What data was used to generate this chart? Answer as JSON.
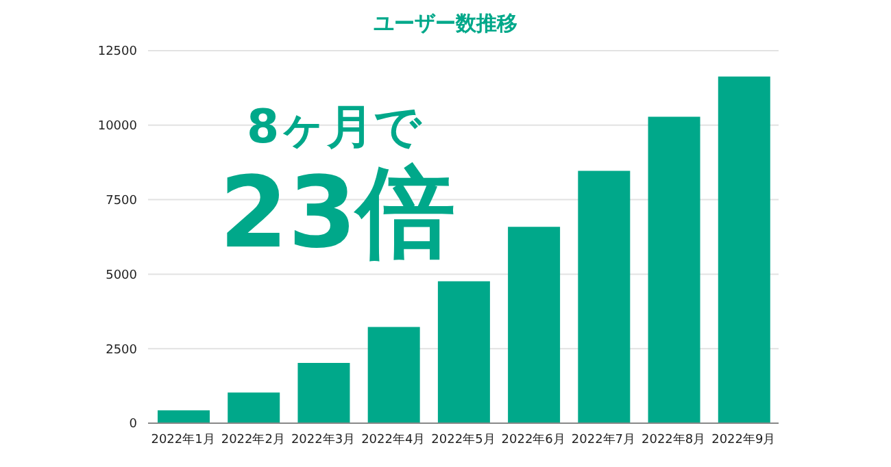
{
  "chart_data": {
    "type": "bar",
    "title": "ユーザー数推移",
    "categories": [
      "2022年1月",
      "2022年2月",
      "2022年3月",
      "2022年4月",
      "2022年5月",
      "2022年6月",
      "2022年7月",
      "2022年8月",
      "2022年9月"
    ],
    "values": [
      430,
      1030,
      2020,
      3230,
      4765,
      6590,
      8470,
      10280,
      11630
    ],
    "color": "#00a88a",
    "ylim": [
      0,
      12500
    ],
    "yticks": [
      0,
      2500,
      5000,
      7500,
      10000,
      12500
    ],
    "grid": "y",
    "annotations": [
      "8ヶ月で",
      "23倍"
    ]
  }
}
